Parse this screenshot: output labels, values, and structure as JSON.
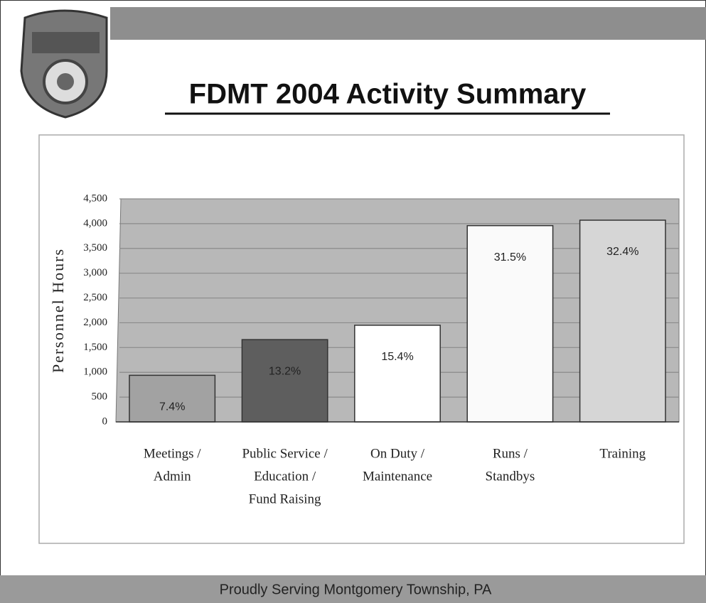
{
  "chart_data": {
    "type": "bar",
    "title": "FDMT 2004 Activity Summary",
    "footer": "Proudly Serving Montgomery Township, PA",
    "y_label": "Personnel Hours",
    "categories": [
      [
        "Meetings /",
        "Admin"
      ],
      [
        "Public Service /",
        "Education /",
        "Fund Raising"
      ],
      [
        "On Duty /",
        "Maintenance"
      ],
      [
        "Runs /",
        "Standbys"
      ],
      [
        "Training"
      ]
    ],
    "values": [
      940,
      1660,
      1950,
      3960,
      4070
    ],
    "percent_labels": [
      "7.4%",
      "13.2%",
      "15.4%",
      "31.5%",
      "32.4%"
    ],
    "colors": [
      "#a2a2a2",
      "#5e5e5e",
      "#ffffff",
      "#fafafa",
      "#d6d6d6"
    ],
    "ylim": [
      0,
      4500
    ],
    "yticks": [
      0,
      500,
      {
        "value": 1000,
        "label": "1,000"
      },
      {
        "value": 1500,
        "label": "1,500"
      },
      {
        "value": 2000,
        "label": "2,000"
      },
      {
        "value": 2500,
        "label": "2,500"
      },
      {
        "value": 3000,
        "label": "3,000"
      },
      {
        "value": 3500,
        "label": "3,500"
      },
      {
        "value": 4000,
        "label": "4,000"
      },
      {
        "value": 4500,
        "label": "4,500"
      }
    ],
    "grid": true
  }
}
